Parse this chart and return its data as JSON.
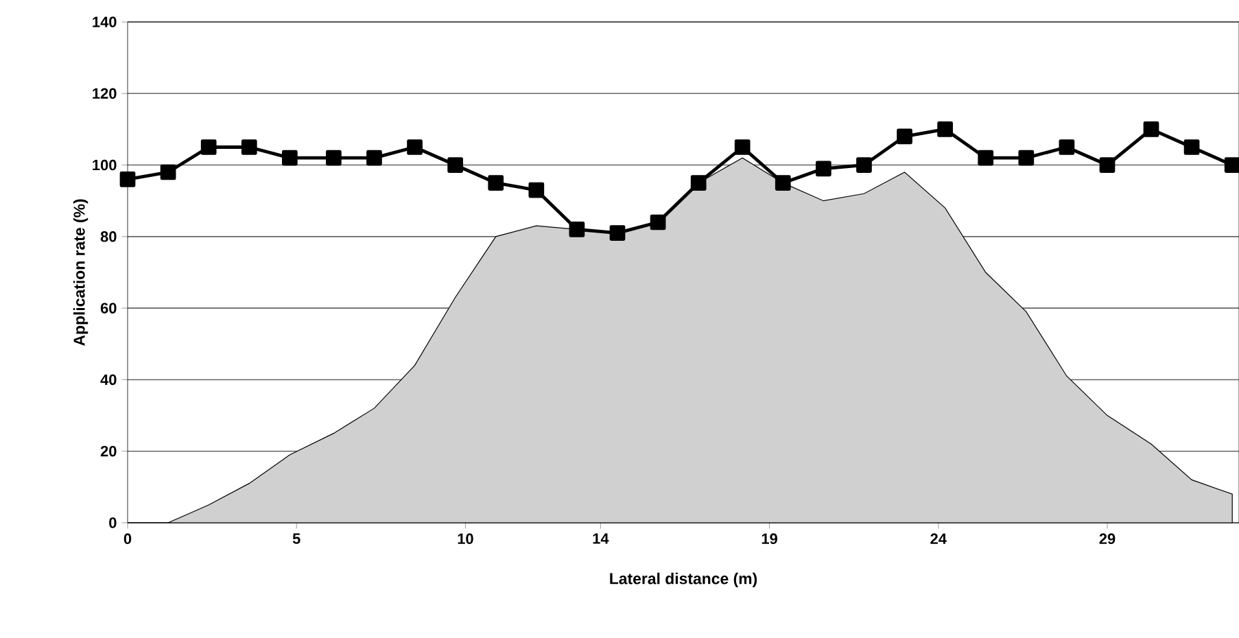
{
  "chart_data": {
    "type": "area",
    "xlabel": "Lateral distance (m)",
    "ylabel": "Application rate (%)",
    "x": [
      0,
      1.2,
      2.4,
      3.6,
      4.8,
      6.1,
      7.3,
      8.5,
      9.7,
      10.9,
      12.1,
      13.3,
      14.5,
      15.7,
      16.9,
      18.2,
      19.4,
      20.6,
      21.8,
      23,
      24.2,
      25.4,
      26.6,
      27.8,
      29,
      30.3,
      31.5,
      32.7
    ],
    "xlim": [
      0,
      32.9
    ],
    "xticks": [
      0,
      5,
      10,
      14,
      19,
      24,
      29
    ],
    "ylim": [
      0,
      140
    ],
    "yticks": [
      0,
      20,
      40,
      60,
      80,
      100,
      120,
      140
    ],
    "grid": "y",
    "series": [
      {
        "color": "#d0d0d0",
        "values": [
          0,
          0,
          5,
          11,
          19,
          25,
          32,
          44,
          63,
          80,
          83,
          82,
          81,
          84,
          95,
          102,
          95,
          90,
          92,
          98,
          88,
          70,
          59,
          41,
          30,
          22,
          12,
          8
        ]
      },
      {
        "type": "line",
        "color": "#000000",
        "marker": "square",
        "values": [
          96,
          98,
          105,
          105,
          102,
          102,
          102,
          105,
          100,
          95,
          93,
          82,
          81,
          84,
          95,
          105,
          95,
          99,
          100,
          108,
          110,
          102,
          102,
          105,
          100,
          110,
          105,
          100
        ]
      }
    ]
  }
}
